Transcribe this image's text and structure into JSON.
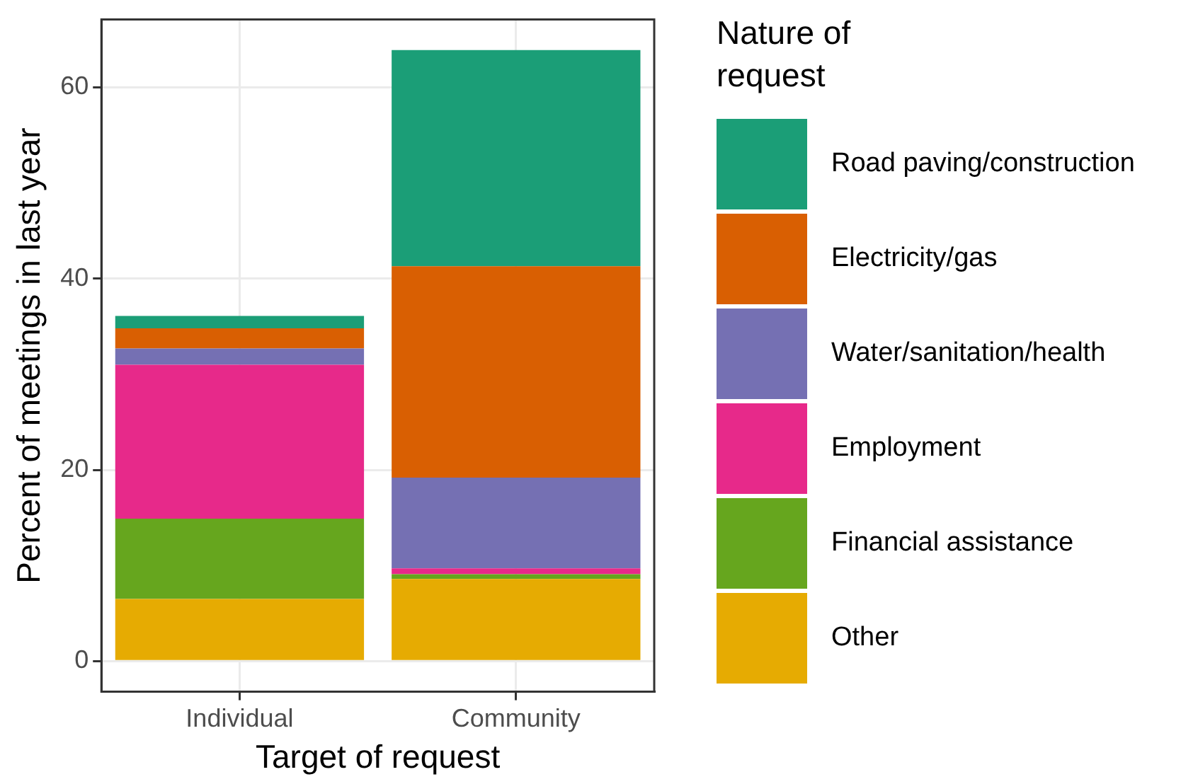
{
  "chart_data": {
    "type": "bar",
    "stacked": true,
    "xlabel": "Target of request",
    "ylabel": "Percent of meetings in last year",
    "legend_title": "Nature of request",
    "legend": "right",
    "grid": true,
    "categories": [
      "Individual",
      "Community"
    ],
    "ylim": [
      -3.2,
      67.1
    ],
    "yticks": [
      0,
      20,
      40,
      60
    ],
    "series": [
      {
        "name": "Other",
        "color": "#e6ab02",
        "values": [
          6.5,
          8.6
        ]
      },
      {
        "name": "Financial assistance",
        "color": "#66a61e",
        "values": [
          8.4,
          0.5
        ]
      },
      {
        "name": "Employment",
        "color": "#e7298a",
        "values": [
          16.1,
          0.6
        ]
      },
      {
        "name": "Water/sanitation/health",
        "color": "#7570b3",
        "values": [
          1.7,
          9.5
        ]
      },
      {
        "name": "Electricity/gas",
        "color": "#d95f02",
        "values": [
          2.1,
          22.1
        ]
      },
      {
        "name": "Road paving/construction",
        "color": "#1b9e77",
        "values": [
          1.3,
          22.6
        ]
      }
    ]
  }
}
